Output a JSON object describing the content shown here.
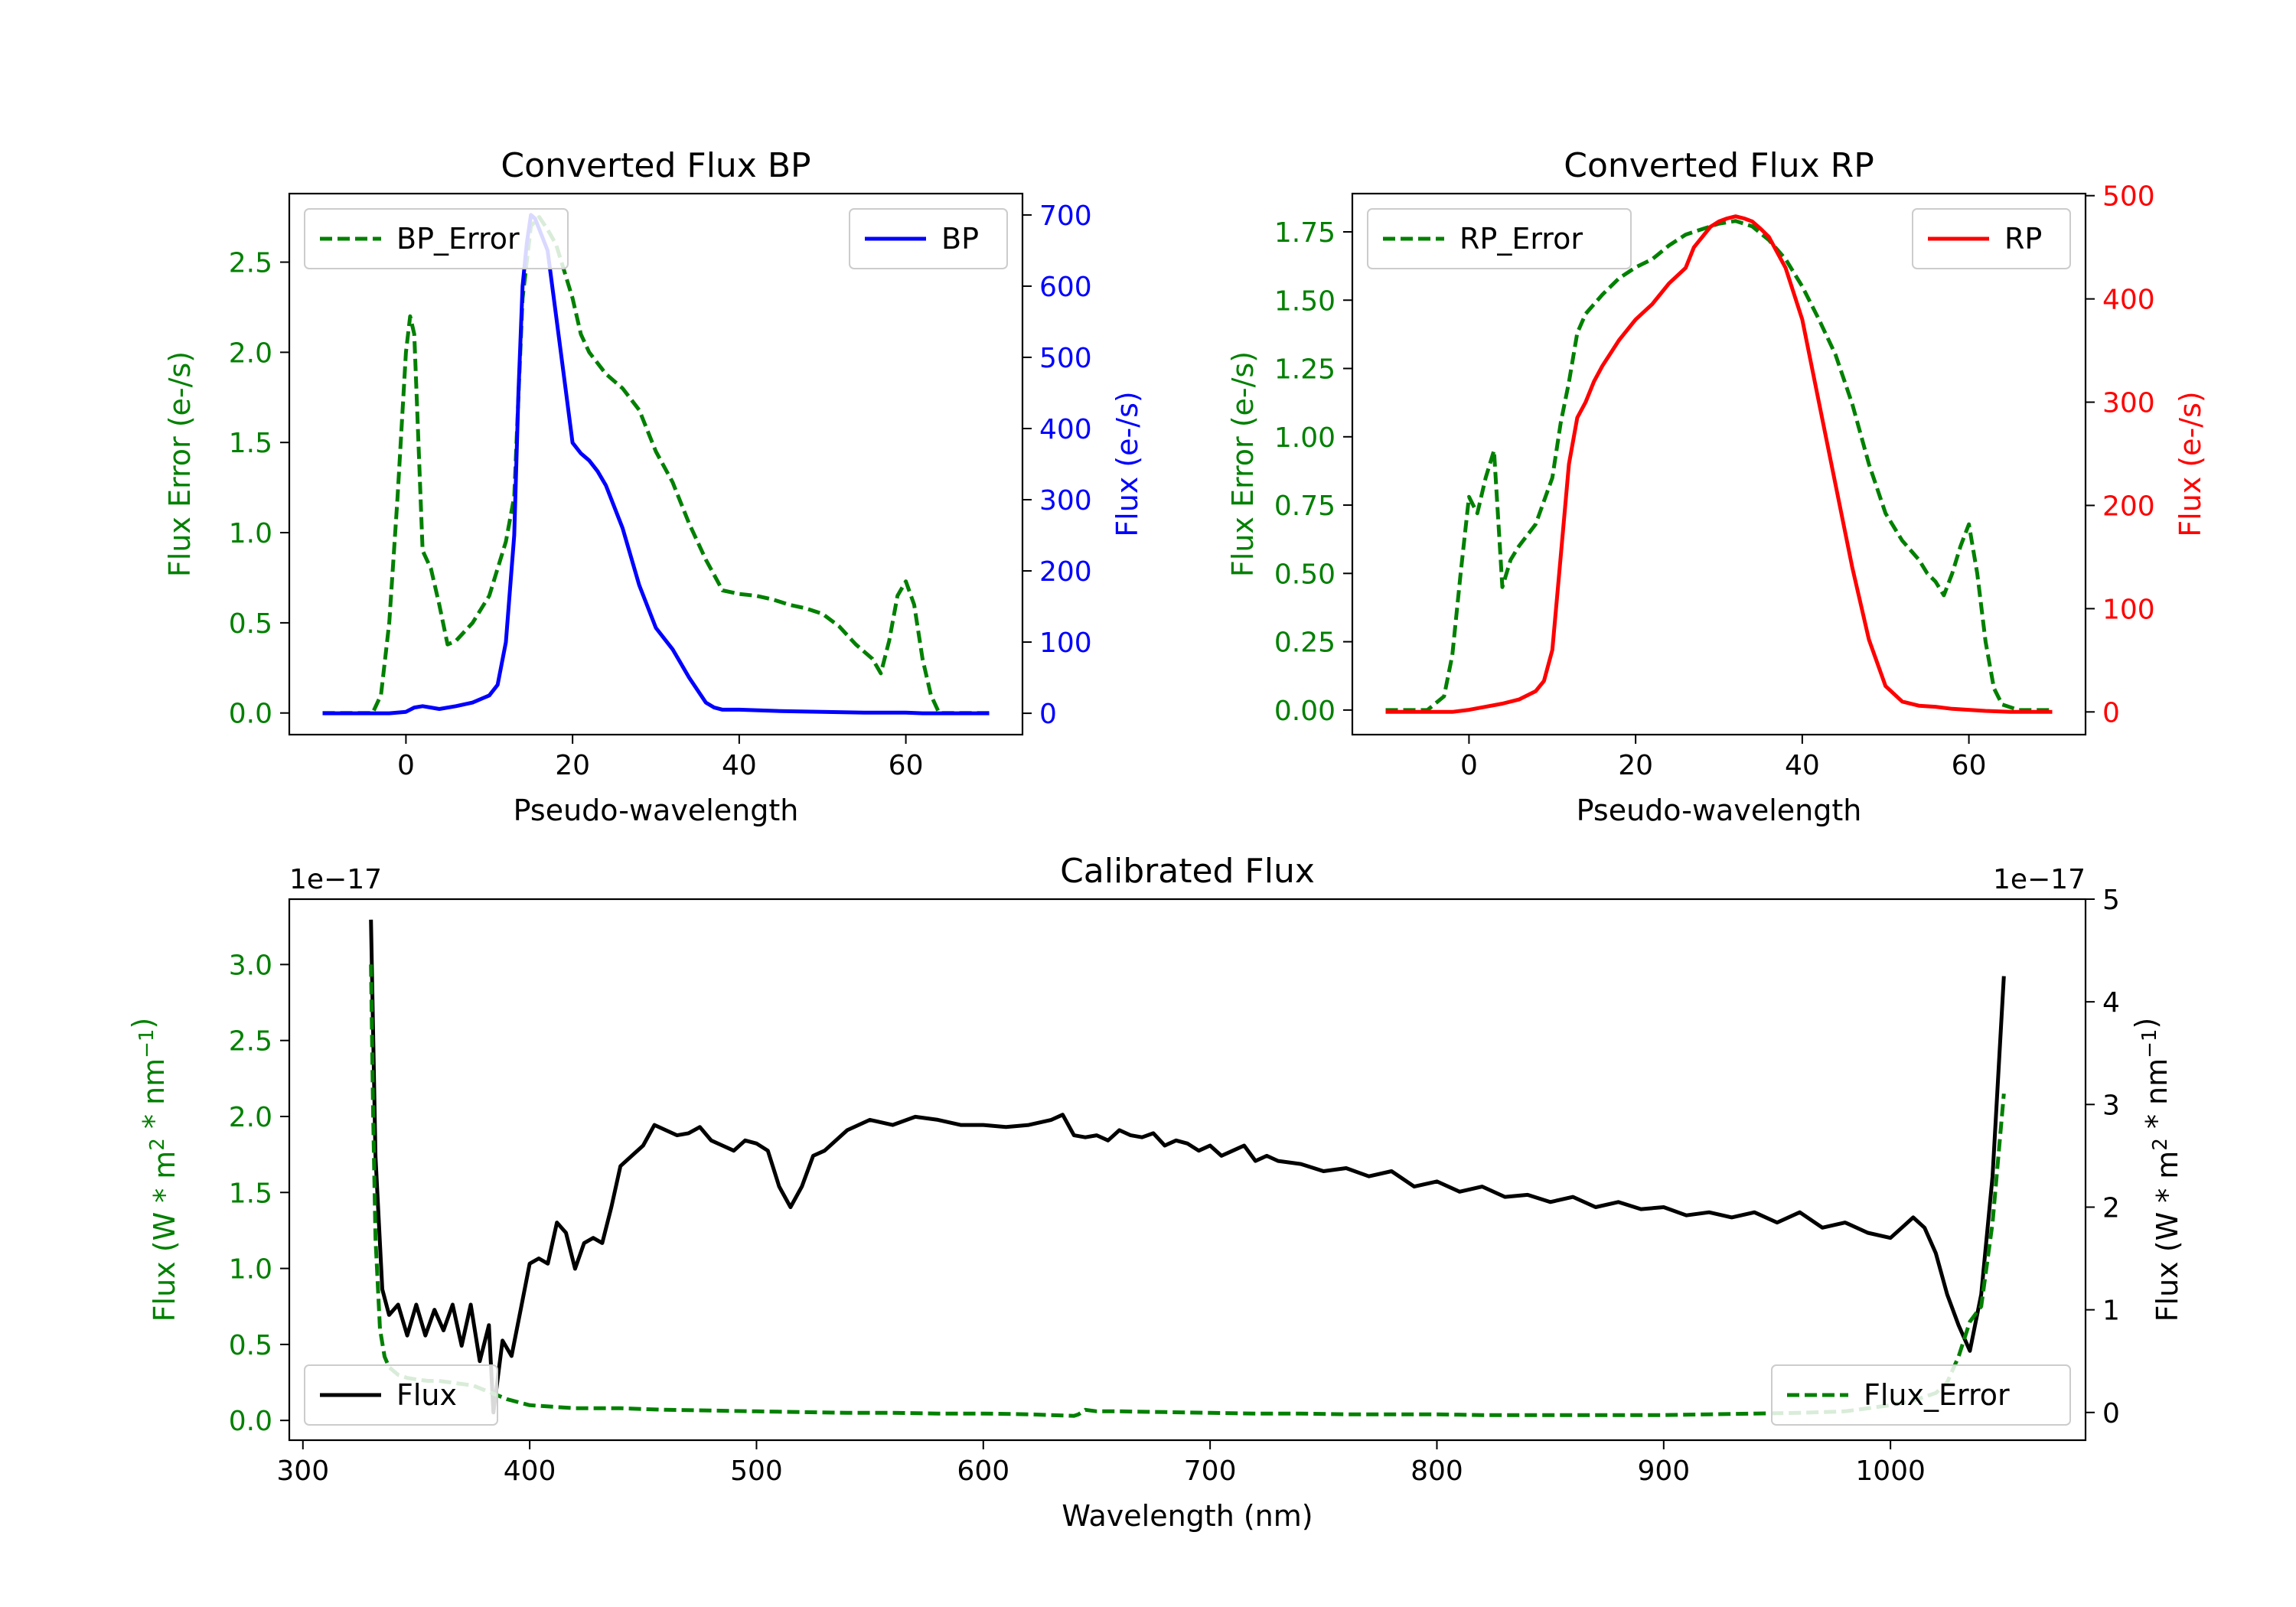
{
  "chart_data": [
    {
      "id": "bp",
      "type": "line",
      "title": "Converted Flux BP",
      "xlabel": "Pseudo-wavelength",
      "xlim": [
        -14,
        74
      ],
      "xticks": [
        0,
        20,
        40,
        60
      ],
      "left_axis": {
        "label": "Flux Error (e-/s)",
        "color": "#008000",
        "ylim": [
          -0.12,
          2.88
        ],
        "ticks": [
          0.0,
          0.5,
          1.0,
          1.5,
          2.0,
          2.5
        ],
        "tick_labels": [
          "0.0",
          "0.5",
          "1.0",
          "1.5",
          "2.0",
          "2.5"
        ]
      },
      "right_axis": {
        "label": "Flux (e-/s)",
        "color": "#0000ff",
        "ylim": [
          -30,
          730
        ],
        "ticks": [
          0,
          100,
          200,
          300,
          400,
          500,
          600,
          700
        ],
        "tick_labels": [
          "0",
          "100",
          "200",
          "300",
          "400",
          "500",
          "600",
          "700"
        ]
      },
      "series": [
        {
          "name": "BP_Error",
          "axis": "left",
          "style": "dashed",
          "color": "#008000",
          "legend": "top-left",
          "x": [
            -10,
            -4,
            -3,
            -2,
            -1,
            0,
            0.5,
            1,
            2,
            3,
            4,
            5,
            6,
            8,
            10,
            12,
            13,
            14,
            15,
            16,
            17,
            18,
            19,
            20,
            21,
            22,
            24,
            26,
            28,
            30,
            32,
            34,
            36,
            38,
            40,
            42,
            44,
            46,
            48,
            50,
            52,
            54,
            56,
            57,
            58,
            59,
            60,
            61,
            62,
            63,
            64,
            66,
            70
          ],
          "y": [
            0,
            0,
            0.1,
            0.5,
            1.2,
            2.0,
            2.2,
            2.1,
            0.9,
            0.8,
            0.6,
            0.38,
            0.4,
            0.5,
            0.65,
            0.95,
            1.2,
            2.3,
            2.7,
            2.75,
            2.68,
            2.6,
            2.45,
            2.3,
            2.1,
            2.0,
            1.88,
            1.8,
            1.68,
            1.45,
            1.28,
            1.05,
            0.85,
            0.68,
            0.66,
            0.65,
            0.63,
            0.6,
            0.58,
            0.55,
            0.48,
            0.38,
            0.3,
            0.22,
            0.4,
            0.65,
            0.73,
            0.6,
            0.3,
            0.1,
            0,
            0,
            0
          ]
        },
        {
          "name": "BP",
          "axis": "right",
          "style": "solid",
          "color": "#0000ff",
          "legend": "top-right",
          "x": [
            -10,
            -6,
            -4,
            -2,
            0,
            1,
            2,
            3,
            4,
            6,
            8,
            10,
            11,
            12,
            13,
            13.5,
            14,
            14.5,
            15,
            15.5,
            16,
            17,
            18,
            19,
            20,
            21,
            22,
            23,
            24,
            26,
            28,
            30,
            32,
            34,
            36,
            37,
            38,
            40,
            45,
            50,
            55,
            60,
            62,
            64,
            70
          ],
          "y": [
            0,
            0,
            0,
            0,
            2,
            8,
            10,
            8,
            6,
            10,
            15,
            25,
            40,
            100,
            250,
            450,
            600,
            660,
            700,
            695,
            680,
            650,
            560,
            470,
            380,
            365,
            355,
            340,
            320,
            260,
            180,
            120,
            90,
            50,
            15,
            8,
            5,
            5,
            3,
            2,
            1,
            1,
            0,
            0,
            0
          ]
        }
      ]
    },
    {
      "id": "rp",
      "type": "line",
      "title": "Converted Flux RP",
      "xlabel": "Pseudo-wavelength",
      "xlim": [
        -14,
        74
      ],
      "xticks": [
        0,
        20,
        40,
        60
      ],
      "left_axis": {
        "label": "Flux Error (e-/s)",
        "color": "#008000",
        "ylim": [
          -0.09,
          1.89
        ],
        "ticks": [
          0.0,
          0.25,
          0.5,
          0.75,
          1.0,
          1.25,
          1.5,
          1.75
        ],
        "tick_labels": [
          "0.00",
          "0.25",
          "0.50",
          "0.75",
          "1.00",
          "1.25",
          "1.50",
          "1.75"
        ]
      },
      "right_axis": {
        "label": "Flux (e-/s)",
        "color": "#ff0000",
        "ylim": [
          -22,
          502
        ],
        "ticks": [
          0,
          100,
          200,
          300,
          400,
          500
        ],
        "tick_labels": [
          "0",
          "100",
          "200",
          "300",
          "400",
          "500"
        ]
      },
      "series": [
        {
          "name": "RP_Error",
          "axis": "left",
          "style": "dashed",
          "color": "#008000",
          "legend": "top-left",
          "x": [
            -10,
            -5,
            -3,
            -2,
            -1,
            0,
            1,
            2,
            3,
            4,
            5,
            6,
            8,
            10,
            11,
            12,
            13,
            14,
            16,
            18,
            20,
            22,
            24,
            26,
            28,
            30,
            32,
            34,
            36,
            38,
            40,
            42,
            44,
            46,
            48,
            50,
            52,
            54,
            55,
            56,
            57,
            58,
            59,
            60,
            61,
            62,
            63,
            64,
            66,
            70
          ],
          "y": [
            0,
            0,
            0.05,
            0.2,
            0.5,
            0.78,
            0.72,
            0.85,
            0.95,
            0.45,
            0.55,
            0.6,
            0.68,
            0.85,
            1.05,
            1.2,
            1.38,
            1.45,
            1.52,
            1.58,
            1.62,
            1.65,
            1.7,
            1.74,
            1.76,
            1.78,
            1.79,
            1.77,
            1.72,
            1.65,
            1.55,
            1.43,
            1.3,
            1.12,
            0.9,
            0.72,
            0.62,
            0.55,
            0.5,
            0.47,
            0.42,
            0.5,
            0.6,
            0.68,
            0.5,
            0.25,
            0.08,
            0.02,
            0,
            0
          ]
        },
        {
          "name": "RP",
          "axis": "right",
          "style": "solid",
          "color": "#ff0000",
          "legend": "top-right",
          "x": [
            -10,
            -5,
            -2,
            0,
            2,
            4,
            6,
            8,
            9,
            10,
            11,
            12,
            13,
            14,
            15,
            16,
            18,
            20,
            22,
            24,
            26,
            27,
            28,
            29,
            30,
            31,
            32,
            33,
            34,
            35,
            36,
            38,
            40,
            42,
            44,
            46,
            48,
            50,
            52,
            54,
            56,
            58,
            60,
            62,
            65,
            70
          ],
          "y": [
            0,
            0,
            0,
            2,
            5,
            8,
            12,
            20,
            30,
            60,
            150,
            240,
            285,
            300,
            320,
            335,
            360,
            380,
            395,
            415,
            430,
            450,
            460,
            470,
            475,
            478,
            480,
            478,
            475,
            468,
            460,
            430,
            380,
            300,
            220,
            140,
            70,
            25,
            10,
            6,
            5,
            3,
            2,
            1,
            0,
            0
          ]
        }
      ]
    },
    {
      "id": "cal",
      "type": "line",
      "title": "Calibrated Flux",
      "xlabel": "Wavelength (nm)",
      "xlim": [
        294,
        1086
      ],
      "xticks": [
        300,
        400,
        500,
        600,
        700,
        800,
        900,
        1000
      ],
      "left_axis": {
        "label_prefix": "Flux (W * m",
        "label_mid": " * nm",
        "label_end": ")",
        "sup1": "2",
        "sup2": "−1",
        "color": "#008000",
        "ylim": [
          -0.13,
          3.43
        ],
        "offset": "1e−17",
        "ticks": [
          0.0,
          0.5,
          1.0,
          1.5,
          2.0,
          2.5,
          3.0
        ],
        "tick_labels": [
          "0.0",
          "0.5",
          "1.0",
          "1.5",
          "2.0",
          "2.5",
          "3.0"
        ]
      },
      "right_axis": {
        "label_prefix": "Flux (W * m",
        "label_mid": " * nm",
        "label_end": ")",
        "sup1": "2",
        "sup2": "−1",
        "color": "#000000",
        "ylim": [
          -0.27,
          5.0
        ],
        "offset": "1e−17",
        "ticks": [
          0,
          1,
          2,
          3,
          4,
          5
        ],
        "tick_labels": [
          "0",
          "1",
          "2",
          "3",
          "4",
          "5"
        ]
      },
      "series": [
        {
          "name": "Flux",
          "axis": "right",
          "style": "solid",
          "color": "#000000",
          "legend": "lower-left",
          "x": [
            330,
            332,
            335,
            338,
            342,
            346,
            350,
            354,
            358,
            362,
            366,
            370,
            374,
            378,
            382,
            384,
            388,
            392,
            396,
            400,
            404,
            408,
            412,
            416,
            420,
            424,
            428,
            432,
            436,
            440,
            445,
            450,
            455,
            460,
            465,
            470,
            475,
            480,
            485,
            490,
            495,
            500,
            505,
            510,
            515,
            520,
            525,
            530,
            540,
            550,
            560,
            570,
            580,
            590,
            600,
            610,
            620,
            630,
            635,
            640,
            645,
            650,
            655,
            660,
            665,
            670,
            675,
            680,
            685,
            690,
            695,
            700,
            705,
            710,
            715,
            720,
            725,
            730,
            740,
            750,
            760,
            770,
            780,
            790,
            800,
            810,
            820,
            830,
            840,
            850,
            860,
            870,
            880,
            890,
            900,
            910,
            920,
            930,
            940,
            950,
            960,
            970,
            980,
            990,
            1000,
            1005,
            1010,
            1015,
            1020,
            1025,
            1030,
            1035,
            1040,
            1045,
            1050
          ],
          "y": [
            4.8,
            2.5,
            1.2,
            0.95,
            1.05,
            0.75,
            1.05,
            0.75,
            1.0,
            0.8,
            1.05,
            0.65,
            1.05,
            0.5,
            0.85,
            0.0,
            0.7,
            0.55,
            1.0,
            1.45,
            1.5,
            1.45,
            1.85,
            1.75,
            1.4,
            1.65,
            1.7,
            1.65,
            2.0,
            2.4,
            2.5,
            2.6,
            2.8,
            2.75,
            2.7,
            2.72,
            2.78,
            2.65,
            2.6,
            2.55,
            2.65,
            2.62,
            2.55,
            2.2,
            2.0,
            2.2,
            2.5,
            2.55,
            2.75,
            2.85,
            2.8,
            2.88,
            2.85,
            2.8,
            2.8,
            2.78,
            2.8,
            2.85,
            2.9,
            2.7,
            2.68,
            2.7,
            2.65,
            2.75,
            2.7,
            2.68,
            2.72,
            2.6,
            2.65,
            2.62,
            2.55,
            2.6,
            2.5,
            2.55,
            2.6,
            2.45,
            2.5,
            2.45,
            2.42,
            2.35,
            2.38,
            2.3,
            2.35,
            2.2,
            2.25,
            2.15,
            2.2,
            2.1,
            2.12,
            2.05,
            2.1,
            2.0,
            2.05,
            1.98,
            2.0,
            1.92,
            1.95,
            1.9,
            1.95,
            1.85,
            1.95,
            1.8,
            1.85,
            1.75,
            1.7,
            1.8,
            1.9,
            1.8,
            1.55,
            1.15,
            0.85,
            0.6,
            1.15,
            2.3,
            4.25
          ]
        },
        {
          "name": "Flux_Error",
          "axis": "left",
          "style": "dashed",
          "color": "#008000",
          "legend": "lower-right",
          "x": [
            330,
            331,
            332,
            334,
            336,
            338,
            342,
            346,
            350,
            355,
            360,
            365,
            370,
            375,
            380,
            385,
            390,
            395,
            400,
            410,
            420,
            440,
            460,
            480,
            500,
            520,
            540,
            560,
            580,
            600,
            620,
            640,
            642,
            645,
            650,
            660,
            680,
            700,
            720,
            740,
            760,
            780,
            800,
            820,
            840,
            860,
            880,
            900,
            920,
            940,
            960,
            980,
            1000,
            1010,
            1020,
            1025,
            1030,
            1035,
            1040,
            1045,
            1050
          ],
          "y": [
            3.0,
            2.0,
            1.2,
            0.6,
            0.42,
            0.35,
            0.3,
            0.28,
            0.27,
            0.26,
            0.26,
            0.25,
            0.24,
            0.23,
            0.2,
            0.17,
            0.14,
            0.12,
            0.1,
            0.09,
            0.08,
            0.08,
            0.07,
            0.065,
            0.06,
            0.055,
            0.05,
            0.05,
            0.045,
            0.045,
            0.04,
            0.03,
            0.04,
            0.07,
            0.06,
            0.06,
            0.055,
            0.05,
            0.045,
            0.045,
            0.04,
            0.04,
            0.04,
            0.035,
            0.035,
            0.035,
            0.035,
            0.035,
            0.04,
            0.045,
            0.05,
            0.06,
            0.1,
            0.13,
            0.18,
            0.25,
            0.42,
            0.65,
            0.75,
            1.3,
            2.15
          ]
        }
      ]
    }
  ]
}
